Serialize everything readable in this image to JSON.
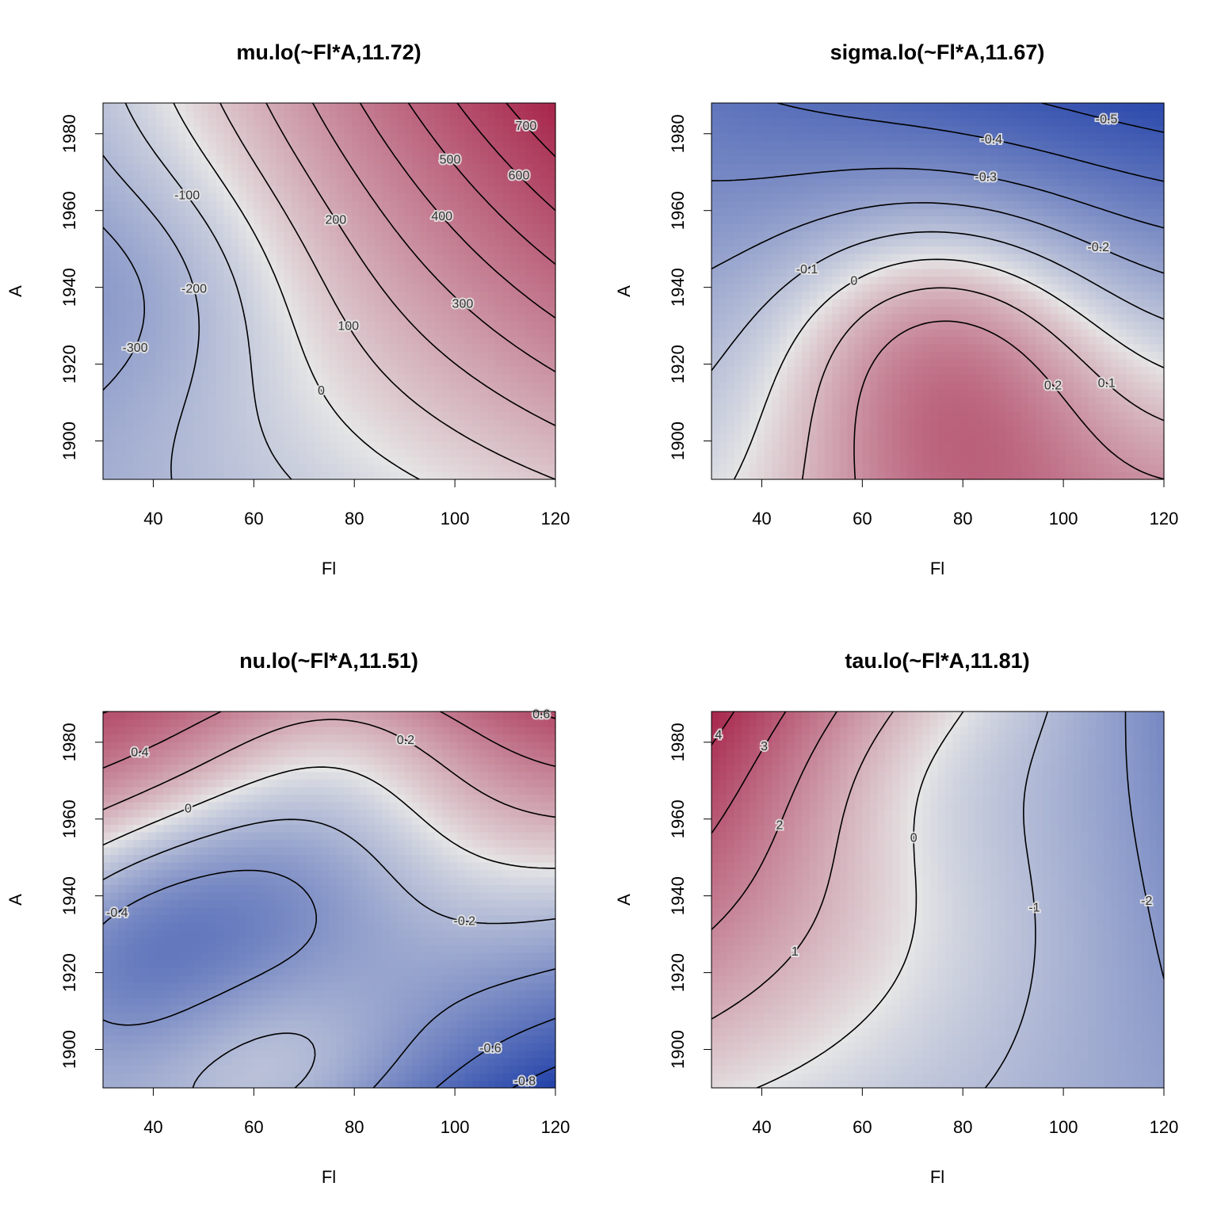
{
  "colors": {
    "low": "#1f3fa8",
    "mid": "#e6e6e6",
    "high": "#a0103a",
    "contour": "#000000"
  },
  "chart_data": [
    {
      "type": "heatmap",
      "title": "mu.lo(~Fl*A,11.72)",
      "xlabel": "Fl",
      "ylabel": "A",
      "xlim": [
        30,
        120
      ],
      "ylim": [
        1890,
        1988
      ],
      "xticks": [
        "40",
        "60",
        "80",
        "100",
        "120"
      ],
      "yticks": [
        "1900",
        "1920",
        "1940",
        "1960",
        "1980"
      ],
      "color_range": [
        -900,
        900
      ],
      "contour_labels": [
        "-300",
        "-200",
        "-100",
        "0",
        "100",
        "200",
        "300",
        "400",
        "500",
        "600",
        "700"
      ],
      "corners": {
        "bottom_left": -230,
        "bottom_right": 100,
        "top_left": -120,
        "top_right": 800
      },
      "features": [
        {
          "x": 35,
          "y": 1940,
          "value": -320
        }
      ]
    },
    {
      "type": "heatmap",
      "title": "sigma.lo(~Fl*A,11.67)",
      "xlabel": "Fl",
      "ylabel": "A",
      "xlim": [
        30,
        120
      ],
      "ylim": [
        1890,
        1988
      ],
      "xticks": [
        "40",
        "60",
        "80",
        "100",
        "120"
      ],
      "yticks": [
        "1900",
        "1920",
        "1940",
        "1960",
        "1980"
      ],
      "color_range": [
        -0.6,
        0.6
      ],
      "contour_labels": [
        "-0.5",
        "-0.4",
        "-0.3",
        "-0.2",
        "-0.1",
        "0",
        "0.1",
        "0.2"
      ],
      "corners": {
        "bottom_left": -0.05,
        "bottom_right": 0.15,
        "top_left": -0.38,
        "top_right": -0.56
      },
      "features": [
        {
          "x": 80,
          "y": 1895,
          "value": 0.24
        },
        {
          "x": 75,
          "y": 1930,
          "value": 0.14
        }
      ]
    },
    {
      "type": "heatmap",
      "title": "nu.lo(~Fl*A,11.51)",
      "xlabel": "Fl",
      "ylabel": "A",
      "xlim": [
        30,
        120
      ],
      "ylim": [
        1890,
        1988
      ],
      "xticks": [
        "40",
        "60",
        "80",
        "100",
        "120"
      ],
      "yticks": [
        "1900",
        "1920",
        "1940",
        "1960",
        "1980"
      ],
      "color_range": [
        -0.9,
        0.9
      ],
      "contour_labels": [
        "-0.8",
        "-0.6",
        "-0.4",
        "-0.2",
        "0",
        "0.2",
        "0.4",
        "0.6"
      ],
      "corners": {
        "bottom_left": -0.15,
        "bottom_right": -0.9,
        "top_left": 0.68,
        "top_right": 0.7
      },
      "features": [
        {
          "x": 33,
          "y": 1922,
          "value": -0.45
        },
        {
          "x": 62,
          "y": 1895,
          "value": 0.05
        },
        {
          "x": 78,
          "y": 1985,
          "value": 0.25
        },
        {
          "x": 62,
          "y": 1940,
          "value": -0.3
        }
      ]
    },
    {
      "type": "heatmap",
      "title": "tau.lo(~Fl*A,11.81)",
      "xlabel": "Fl",
      "ylabel": "A",
      "xlim": [
        30,
        120
      ],
      "ylim": [
        1890,
        1988
      ],
      "xticks": [
        "40",
        "60",
        "80",
        "100",
        "120"
      ],
      "yticks": [
        "1900",
        "1920",
        "1940",
        "1960",
        "1980"
      ],
      "color_range": [
        -5,
        5
      ],
      "contour_labels": [
        "-2",
        "-1",
        "0",
        "1",
        "2",
        "3",
        "4"
      ],
      "corners": {
        "bottom_left": 0.2,
        "bottom_right": -1.8,
        "top_left": 4.6,
        "top_right": -2.5
      },
      "features": [
        {
          "x": 82,
          "y": 1925,
          "value": -0.4
        },
        {
          "x": 68,
          "y": 1972,
          "value": 0.3
        }
      ]
    }
  ]
}
